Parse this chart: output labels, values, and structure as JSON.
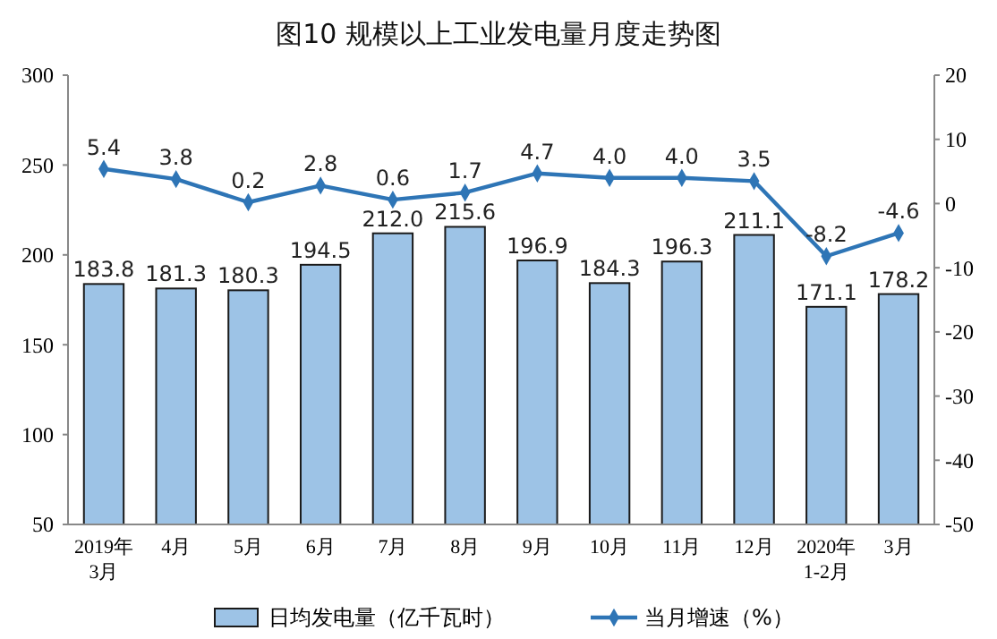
{
  "chart_data": {
    "type": "bar",
    "title": "图10  规模以上工业发电量月度走势图",
    "categories": [
      "2019年\n3月",
      "4月",
      "5月",
      "6月",
      "7月",
      "8月",
      "9月",
      "10月",
      "11月",
      "12月",
      "2020年\n1-2月",
      "3月"
    ],
    "series": [
      {
        "name": "日均发电量（亿千瓦时）",
        "color": "#9dc3e6",
        "values": [
          183.8,
          181.3,
          180.3,
          194.5,
          212.0,
          215.6,
          196.9,
          184.3,
          196.3,
          211.1,
          171.1,
          178.2
        ],
        "value_labels": [
          "183.8",
          "181.3",
          "180.3",
          "194.5",
          "212.0",
          "215.6",
          "196.9",
          "184.3",
          "196.3",
          "211.1",
          "171.1",
          "178.2"
        ]
      },
      {
        "name": "当月增速（%）",
        "type": "line",
        "axis": "y2",
        "color": "#2e75b6",
        "marker": "diamond",
        "values": [
          5.4,
          3.8,
          0.2,
          2.8,
          0.6,
          1.7,
          4.7,
          4.0,
          4.0,
          3.5,
          -8.2,
          -4.6
        ],
        "value_labels": [
          "5.4",
          "3.8",
          "0.2",
          "2.8",
          "0.6",
          "1.7",
          "4.7",
          "4.0",
          "4.0",
          "3.5",
          "-8.2",
          "-4.6"
        ]
      }
    ],
    "ylim": [
      50,
      300
    ],
    "yticks": [
      50,
      100,
      150,
      200,
      250,
      300
    ],
    "y2lim": [
      -50,
      20
    ],
    "y2ticks": [
      -50,
      -40,
      -30,
      -20,
      -10,
      0,
      10,
      20
    ],
    "grid": false,
    "legend": "bottom"
  }
}
